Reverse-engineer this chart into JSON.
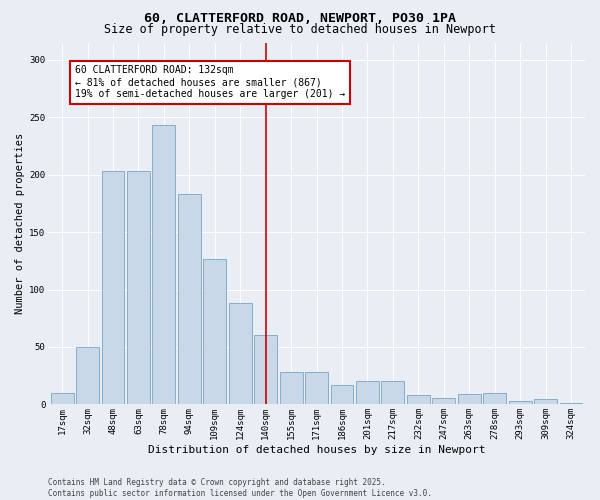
{
  "title": "60, CLATTERFORD ROAD, NEWPORT, PO30 1PA",
  "subtitle": "Size of property relative to detached houses in Newport",
  "xlabel": "Distribution of detached houses by size in Newport",
  "ylabel": "Number of detached properties",
  "categories": [
    "17sqm",
    "32sqm",
    "48sqm",
    "63sqm",
    "78sqm",
    "94sqm",
    "109sqm",
    "124sqm",
    "140sqm",
    "155sqm",
    "171sqm",
    "186sqm",
    "201sqm",
    "217sqm",
    "232sqm",
    "247sqm",
    "263sqm",
    "278sqm",
    "293sqm",
    "309sqm",
    "324sqm"
  ],
  "bar_heights": [
    10,
    50,
    203,
    203,
    243,
    183,
    127,
    88,
    60,
    28,
    28,
    17,
    20,
    20,
    8,
    6,
    9,
    10,
    3,
    5,
    1
  ],
  "bar_color": "#c8d8e8",
  "bar_edgecolor": "#6699bb",
  "bg_color": "#e8eef4",
  "gridcolor": "#ffffff",
  "vline_index": 8,
  "vline_color": "#cc0000",
  "annotation_text": "60 CLATTERFORD ROAD: 132sqm\n← 81% of detached houses are smaller (867)\n19% of semi-detached houses are larger (201) →",
  "footer": "Contains HM Land Registry data © Crown copyright and database right 2025.\nContains public sector information licensed under the Open Government Licence v3.0.",
  "ylim": [
    0,
    315
  ],
  "yticks": [
    0,
    50,
    100,
    150,
    200,
    250,
    300
  ],
  "title_fontsize": 9.5,
  "subtitle_fontsize": 8.5,
  "xlabel_fontsize": 8,
  "ylabel_fontsize": 7.5,
  "tick_fontsize": 6.5,
  "annotation_fontsize": 7,
  "footer_fontsize": 5.5
}
